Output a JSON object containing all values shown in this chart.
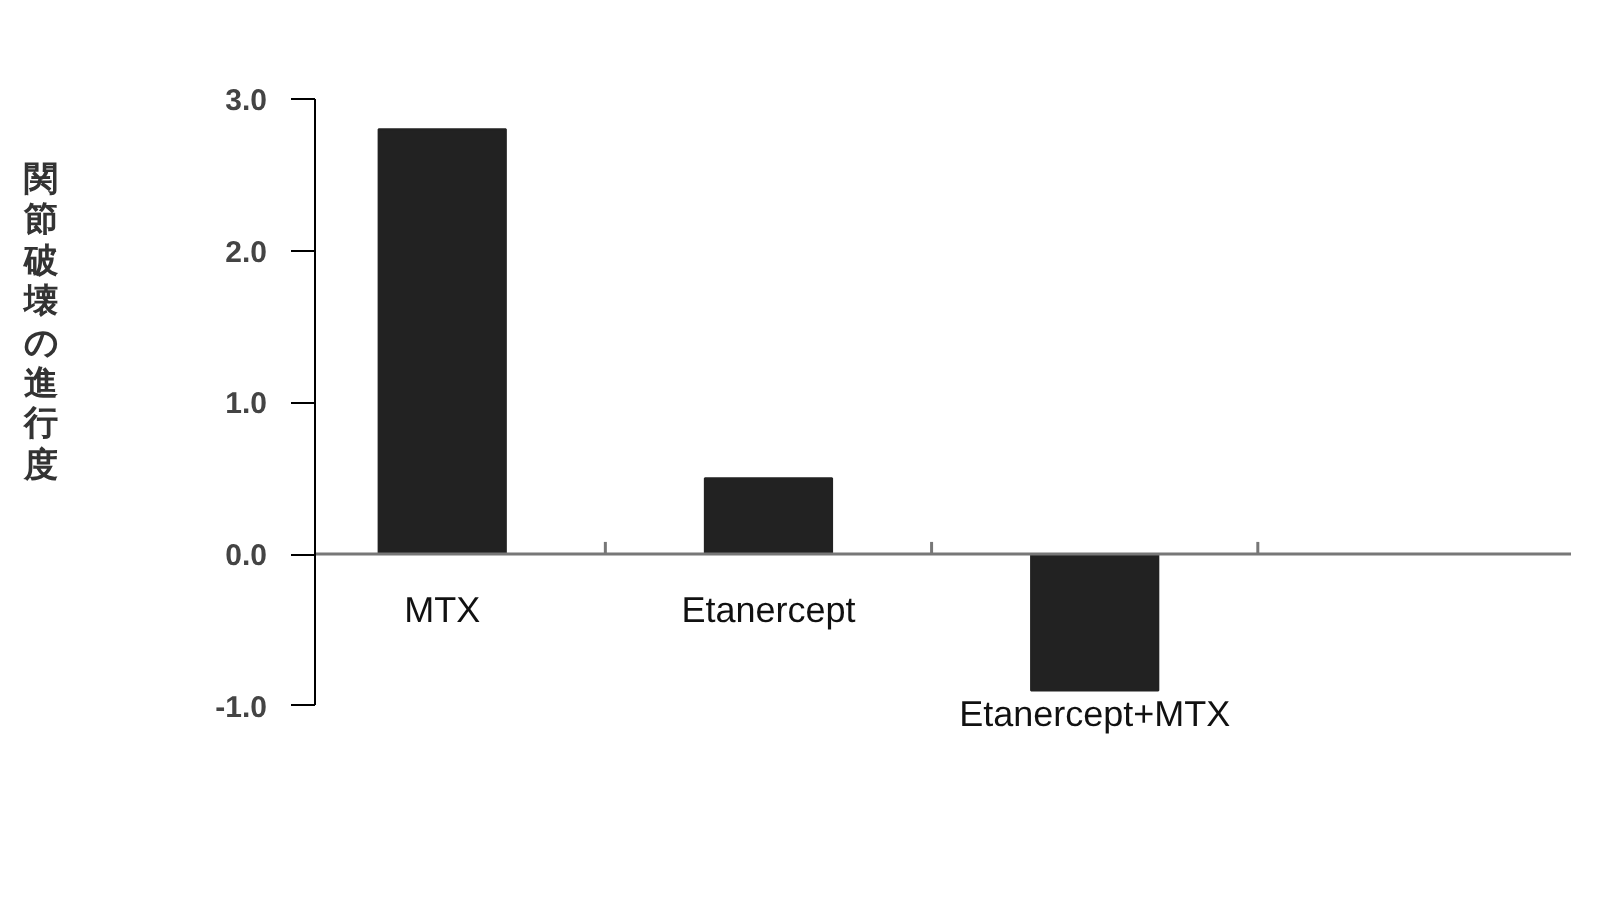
{
  "chart_data": {
    "type": "bar",
    "ylabel": "関節破壊の進行度",
    "categories": [
      "MTX",
      "Etanercept",
      "Etanercept+MTX"
    ],
    "values": [
      2.8,
      0.5,
      -0.9
    ],
    "color": "#222222",
    "ylim": [
      -1.0,
      3.0
    ],
    "yticks": [
      {
        "value": 3.0,
        "label": "3.0"
      },
      {
        "value": 2.0,
        "label": "2.0"
      },
      {
        "value": 1.0,
        "label": "1.0"
      },
      {
        "value": 0.0,
        "label": "0.0"
      },
      {
        "value": -1.0,
        "label": "-1.0"
      }
    ],
    "grid": false
  }
}
